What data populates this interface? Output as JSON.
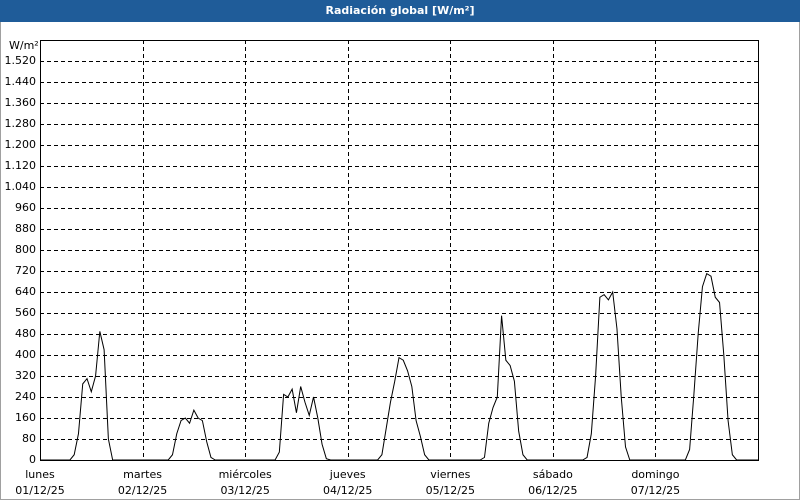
{
  "chart_data": {
    "type": "line",
    "title": "Radiación global [W/m²]",
    "y_label": "W/m²",
    "x": [
      0,
      1,
      2,
      3,
      4,
      5,
      6,
      7,
      8,
      9,
      10,
      11,
      12,
      13,
      14,
      15,
      16,
      17,
      18,
      19,
      20,
      21,
      22,
      23,
      24,
      25,
      26,
      27,
      28,
      29,
      30,
      31,
      32,
      33,
      34,
      35,
      36,
      37,
      38,
      39,
      40,
      41,
      42,
      43,
      44,
      45,
      46,
      47,
      48,
      49,
      50,
      51,
      52,
      53,
      54,
      55,
      56,
      57,
      58,
      59,
      60,
      61,
      62,
      63,
      64,
      65,
      66,
      67,
      68,
      69,
      70,
      71,
      72,
      73,
      74,
      75,
      76,
      77,
      78,
      79,
      80,
      81,
      82,
      83,
      84,
      85,
      86,
      87,
      88,
      89,
      90,
      91,
      92,
      93,
      94,
      95,
      96,
      97,
      98,
      99,
      100,
      101,
      102,
      103,
      104,
      105,
      106,
      107,
      108,
      109,
      110,
      111,
      112,
      113,
      114,
      115,
      116,
      117,
      118,
      119,
      120,
      121,
      122,
      123,
      124,
      125,
      126,
      127,
      128,
      129,
      130,
      131,
      132,
      133,
      134,
      135,
      136,
      137,
      138,
      139,
      140,
      141,
      142,
      143,
      144,
      145,
      146,
      147,
      148,
      149,
      150,
      151,
      152,
      153,
      154,
      155,
      156,
      157,
      158,
      159,
      160,
      161,
      162,
      163,
      164,
      165,
      166,
      167,
      168
    ],
    "series": [
      {
        "color": "#000000",
        "values": [
          0,
          0,
          0,
          0,
          0,
          0,
          0,
          0,
          20,
          100,
          290,
          310,
          260,
          320,
          490,
          420,
          80,
          0,
          0,
          0,
          0,
          0,
          0,
          0,
          0,
          0,
          0,
          0,
          0,
          0,
          0,
          20,
          100,
          150,
          160,
          140,
          190,
          160,
          150,
          70,
          10,
          0,
          0,
          0,
          0,
          0,
          0,
          0,
          0,
          0,
          0,
          0,
          0,
          0,
          0,
          0,
          30,
          250,
          240,
          270,
          180,
          280,
          220,
          170,
          240,
          160,
          60,
          5,
          0,
          0,
          0,
          0,
          0,
          0,
          0,
          0,
          0,
          0,
          0,
          0,
          20,
          120,
          220,
          300,
          390,
          380,
          340,
          280,
          150,
          90,
          20,
          0,
          0,
          0,
          0,
          0,
          0,
          0,
          0,
          0,
          0,
          0,
          0,
          0,
          10,
          140,
          200,
          240,
          550,
          380,
          360,
          300,
          110,
          20,
          0,
          0,
          0,
          0,
          0,
          0,
          0,
          0,
          0,
          0,
          0,
          0,
          0,
          0,
          10,
          100,
          320,
          620,
          630,
          610,
          640,
          500,
          240,
          50,
          0,
          0,
          0,
          0,
          0,
          0,
          0,
          0,
          0,
          0,
          0,
          0,
          0,
          0,
          40,
          250,
          480,
          660,
          710,
          700,
          620,
          600,
          400,
          150,
          20,
          0,
          0,
          0,
          0,
          0,
          0
        ]
      }
    ],
    "xlim": [
      0,
      168
    ],
    "xticks": [
      {
        "value": 0,
        "label": "lunes",
        "date": "01/12/25"
      },
      {
        "value": 24,
        "label": "martes",
        "date": "02/12/25"
      },
      {
        "value": 48,
        "label": "miércoles",
        "date": "03/12/25"
      },
      {
        "value": 72,
        "label": "jueves",
        "date": "04/12/25"
      },
      {
        "value": 96,
        "label": "viernes",
        "date": "05/12/25"
      },
      {
        "value": 120,
        "label": "sábado",
        "date": "06/12/25"
      },
      {
        "value": 144,
        "label": "domingo",
        "date": "07/12/25"
      }
    ],
    "ylim": [
      0,
      1600
    ],
    "yticks": [
      0,
      80,
      160,
      240,
      320,
      400,
      480,
      560,
      640,
      720,
      800,
      880,
      960,
      {
        "value": 1040,
        "label": "1.040"
      },
      {
        "value": 1120,
        "label": "1.120"
      },
      {
        "value": 1200,
        "label": "1.200"
      },
      {
        "value": 1280,
        "label": "1.280"
      },
      {
        "value": 1360,
        "label": "1.360"
      },
      {
        "value": 1440,
        "label": "1.440"
      },
      {
        "value": 1520,
        "label": "1.520"
      }
    ],
    "grid": true
  }
}
